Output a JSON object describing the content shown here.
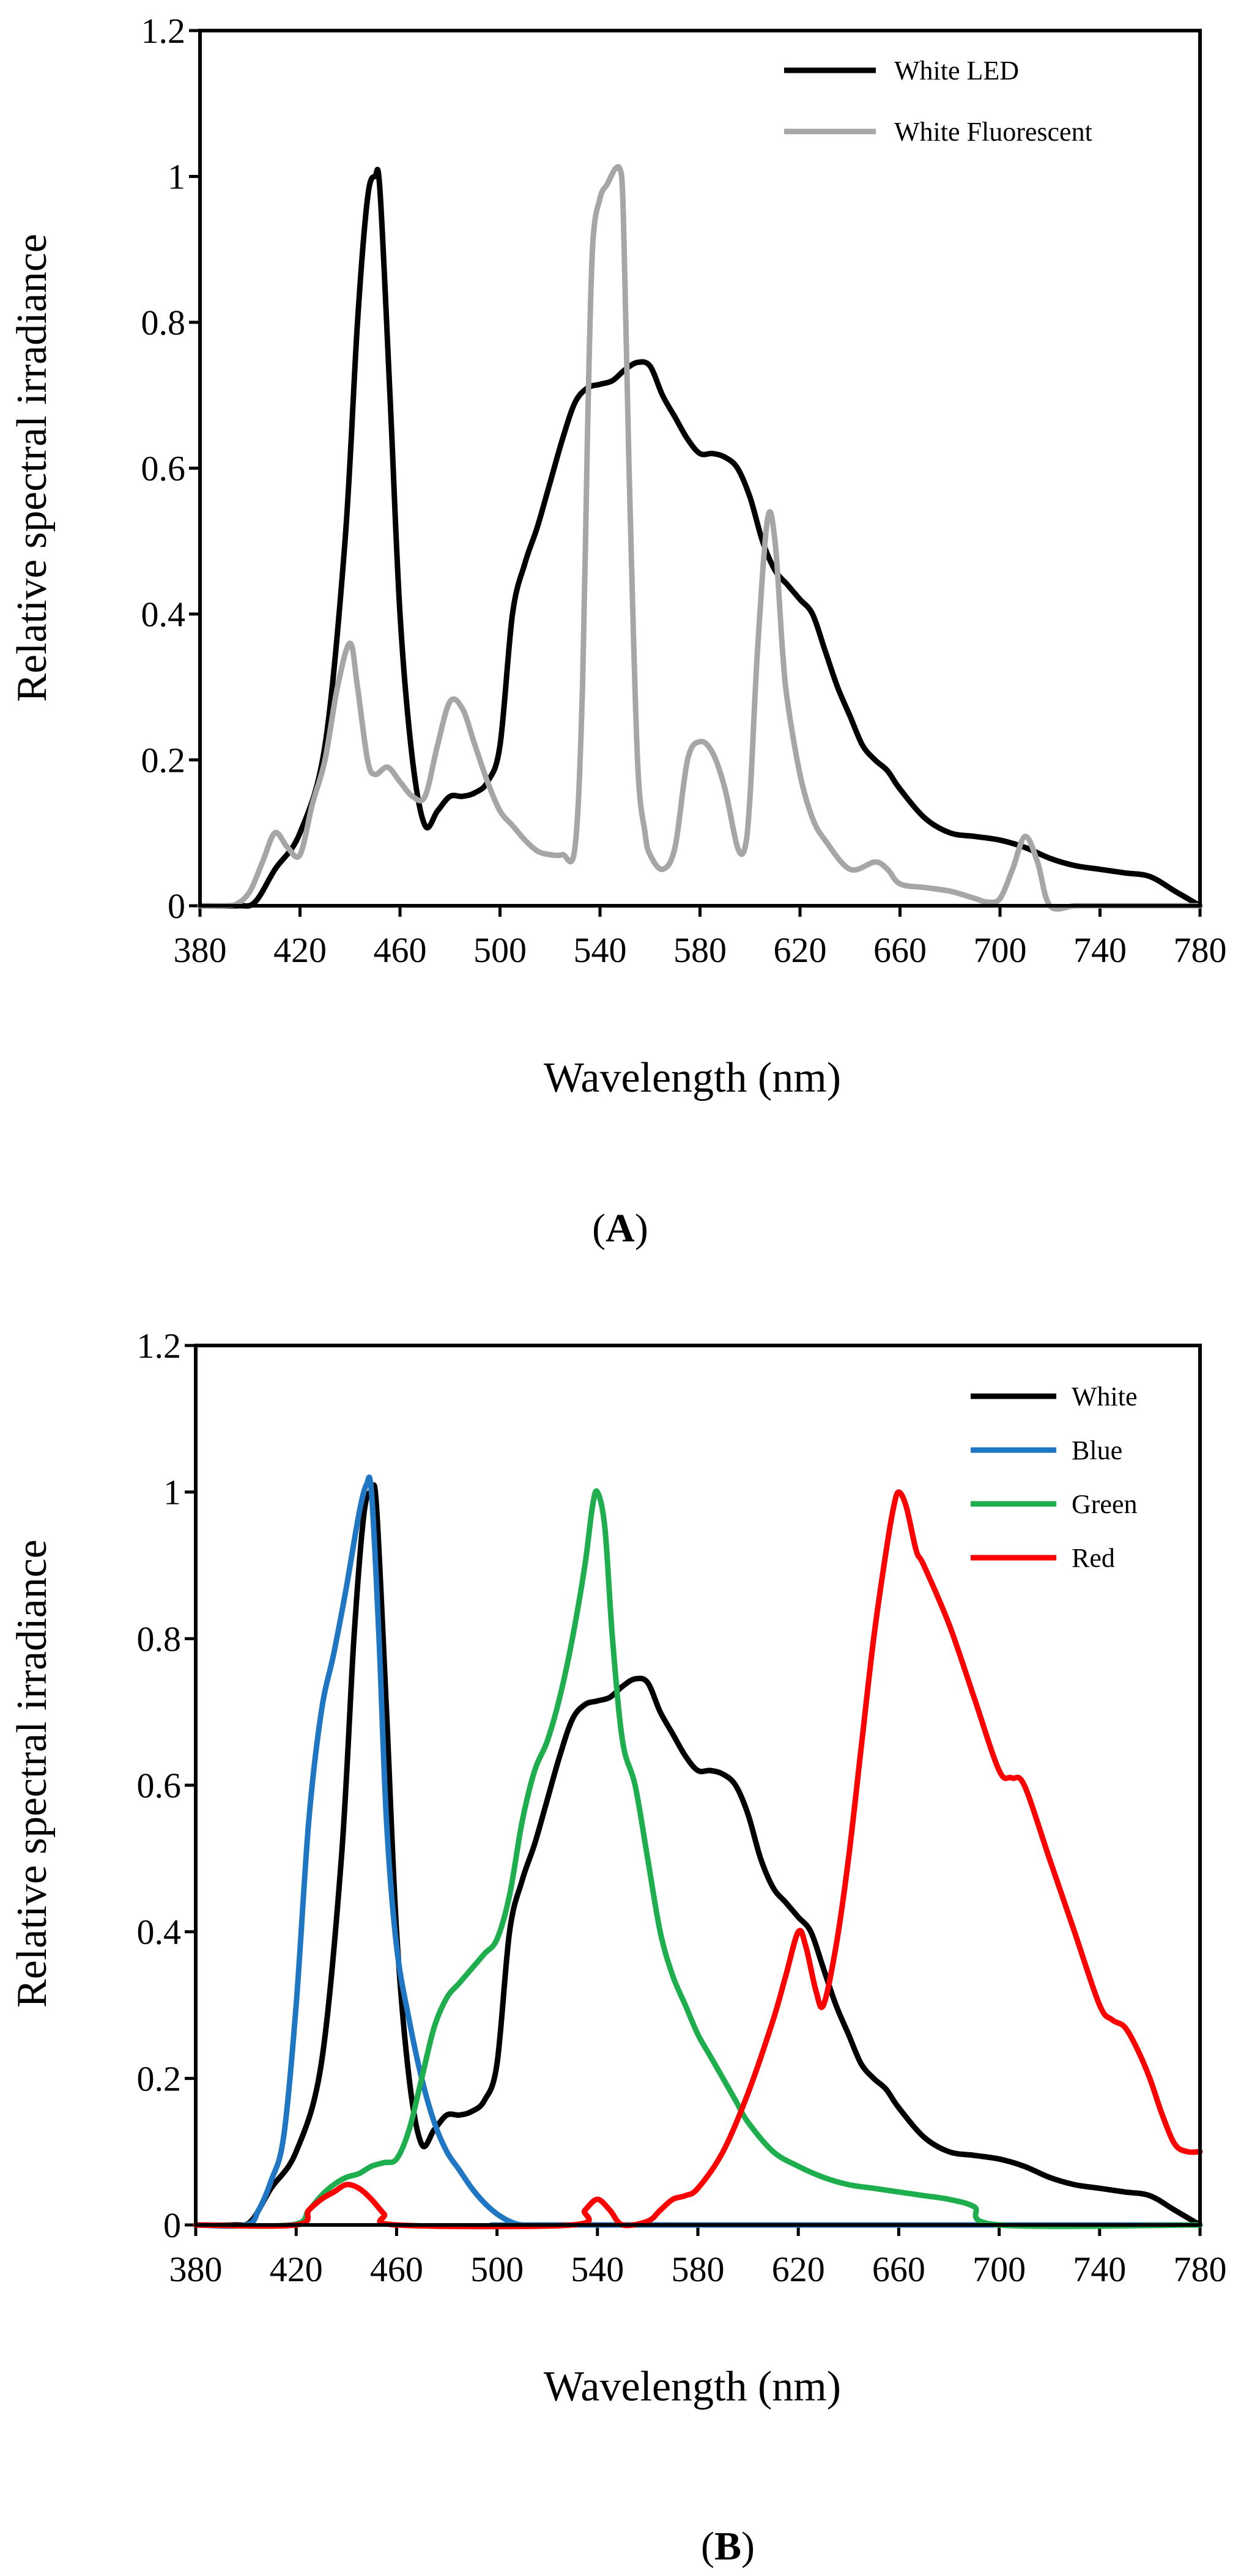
{
  "chart_data": [
    {
      "type": "line",
      "panel": "A",
      "title": "",
      "xlabel": "Wavelength (nm)",
      "ylabel": "Relative spectral irradiance",
      "xlim": [
        380,
        780
      ],
      "ylim": [
        0,
        1.2
      ],
      "xticks": [
        380,
        420,
        460,
        500,
        540,
        580,
        620,
        660,
        700,
        740,
        780
      ],
      "xtick_labels": [
        "380",
        "420",
        "460",
        "500",
        "540",
        "580",
        "620",
        "660",
        "700",
        "740",
        "780"
      ],
      "yticks": [
        0,
        0.2,
        0.4,
        0.6,
        0.8,
        1,
        1.2
      ],
      "ytick_labels": [
        "0",
        "0.2",
        "0.4",
        "0.6",
        "0.8",
        "1",
        "1.2"
      ],
      "grid": false,
      "legend_position": "top-right",
      "panel_label": {
        "open": "(",
        "letter": "A",
        "close": ")"
      },
      "series": [
        {
          "name": "White LED",
          "color": "#000000",
          "x": [
            380,
            395,
            402,
            410,
            420,
            430,
            438,
            443,
            447,
            450,
            452,
            456,
            460,
            465,
            470,
            475,
            480,
            485,
            490,
            495,
            500,
            505,
            510,
            515,
            520,
            525,
            530,
            535,
            540,
            545,
            550,
            555,
            560,
            565,
            570,
            575,
            580,
            585,
            590,
            595,
            600,
            605,
            610,
            615,
            620,
            625,
            630,
            635,
            640,
            645,
            650,
            655,
            660,
            670,
            680,
            690,
            700,
            710,
            720,
            730,
            740,
            750,
            760,
            770,
            780
          ],
          "values": [
            0,
            0,
            0.005,
            0.05,
            0.1,
            0.22,
            0.5,
            0.8,
            0.97,
            1.0,
            0.98,
            0.7,
            0.4,
            0.2,
            0.11,
            0.13,
            0.15,
            0.15,
            0.155,
            0.17,
            0.22,
            0.4,
            0.47,
            0.52,
            0.58,
            0.64,
            0.69,
            0.71,
            0.715,
            0.72,
            0.735,
            0.745,
            0.74,
            0.7,
            0.67,
            0.64,
            0.62,
            0.62,
            0.615,
            0.6,
            0.56,
            0.5,
            0.46,
            0.44,
            0.42,
            0.4,
            0.35,
            0.3,
            0.26,
            0.22,
            0.2,
            0.185,
            0.16,
            0.12,
            0.1,
            0.095,
            0.09,
            0.08,
            0.065,
            0.055,
            0.05,
            0.045,
            0.04,
            0.02,
            0
          ]
        },
        {
          "name": "White Fluorescent",
          "color": "#a6a6a6",
          "x": [
            380,
            390,
            395,
            400,
            405,
            410,
            415,
            420,
            425,
            430,
            435,
            440,
            443,
            447,
            450,
            455,
            460,
            465,
            470,
            475,
            480,
            485,
            490,
            495,
            500,
            505,
            510,
            515,
            520,
            525,
            530,
            533,
            535,
            537,
            540,
            543,
            546,
            548,
            549,
            550,
            552,
            555,
            558,
            560,
            565,
            570,
            575,
            580,
            585,
            590,
            595,
            598,
            600,
            603,
            607,
            610,
            613,
            615,
            620,
            625,
            630,
            640,
            650,
            655,
            660,
            670,
            680,
            690,
            695,
            700,
            705,
            710,
            715,
            720,
            730,
            740,
            780
          ],
          "values": [
            0,
            0,
            0.003,
            0.02,
            0.06,
            0.1,
            0.08,
            0.07,
            0.14,
            0.2,
            0.3,
            0.36,
            0.3,
            0.2,
            0.18,
            0.19,
            0.17,
            0.15,
            0.15,
            0.22,
            0.28,
            0.27,
            0.22,
            0.17,
            0.13,
            0.11,
            0.09,
            0.075,
            0.07,
            0.07,
            0.08,
            0.3,
            0.65,
            0.9,
            0.97,
            0.99,
            1.01,
            1.01,
            0.98,
            0.85,
            0.55,
            0.2,
            0.1,
            0.07,
            0.05,
            0.08,
            0.2,
            0.225,
            0.21,
            0.16,
            0.08,
            0.08,
            0.15,
            0.35,
            0.53,
            0.5,
            0.35,
            0.28,
            0.18,
            0.12,
            0.09,
            0.05,
            0.06,
            0.05,
            0.03,
            0.025,
            0.02,
            0.01,
            0.005,
            0.01,
            0.05,
            0.095,
            0.06,
            0.0,
            0,
            0,
            0
          ]
        }
      ]
    },
    {
      "type": "line",
      "panel": "B",
      "title": "",
      "xlabel": "Wavelength (nm)",
      "ylabel": "Relative spectral irradiance",
      "xlim": [
        380,
        780
      ],
      "ylim": [
        0,
        1.2
      ],
      "xticks": [
        380,
        420,
        460,
        500,
        540,
        580,
        620,
        660,
        700,
        740,
        780
      ],
      "xtick_labels": [
        "380",
        "420",
        "460",
        "500",
        "540",
        "580",
        "620",
        "660",
        "700",
        "740",
        "780"
      ],
      "yticks": [
        0,
        0.2,
        0.4,
        0.6,
        0.8,
        1,
        1.2
      ],
      "ytick_labels": [
        "0",
        "0.2",
        "0.4",
        "0.6",
        "0.8",
        "1",
        "1.2"
      ],
      "grid": false,
      "legend_position": "top-right",
      "panel_label": {
        "open": "(",
        "letter": "B",
        "close": ")"
      },
      "series": [
        {
          "name": "White",
          "color": "#000000",
          "x": [
            380,
            395,
            402,
            410,
            420,
            430,
            438,
            443,
            447,
            450,
            452,
            456,
            460,
            465,
            470,
            475,
            480,
            485,
            490,
            495,
            500,
            505,
            510,
            515,
            520,
            525,
            530,
            535,
            540,
            545,
            550,
            555,
            560,
            565,
            570,
            575,
            580,
            585,
            590,
            595,
            600,
            605,
            610,
            615,
            620,
            625,
            630,
            635,
            640,
            645,
            650,
            655,
            660,
            670,
            680,
            690,
            700,
            710,
            720,
            730,
            740,
            750,
            760,
            770,
            780
          ],
          "values": [
            0,
            0,
            0.005,
            0.05,
            0.1,
            0.22,
            0.5,
            0.8,
            0.97,
            1.0,
            0.98,
            0.7,
            0.4,
            0.2,
            0.11,
            0.13,
            0.15,
            0.15,
            0.155,
            0.17,
            0.22,
            0.4,
            0.47,
            0.52,
            0.58,
            0.64,
            0.69,
            0.71,
            0.715,
            0.72,
            0.735,
            0.745,
            0.74,
            0.7,
            0.67,
            0.64,
            0.62,
            0.62,
            0.615,
            0.6,
            0.56,
            0.5,
            0.46,
            0.44,
            0.42,
            0.4,
            0.35,
            0.3,
            0.26,
            0.22,
            0.2,
            0.185,
            0.16,
            0.12,
            0.1,
            0.095,
            0.09,
            0.08,
            0.065,
            0.055,
            0.05,
            0.045,
            0.04,
            0.02,
            0
          ]
        },
        {
          "name": "Blue",
          "color": "#1f77c4",
          "x": [
            380,
            400,
            405,
            410,
            415,
            420,
            425,
            430,
            435,
            440,
            445,
            448,
            450,
            453,
            456,
            460,
            465,
            470,
            475,
            480,
            485,
            490,
            495,
            500,
            505,
            510,
            520,
            780
          ],
          "values": [
            0,
            0,
            0.02,
            0.06,
            0.12,
            0.3,
            0.55,
            0.7,
            0.78,
            0.87,
            0.97,
            1.01,
            1.0,
            0.8,
            0.55,
            0.38,
            0.28,
            0.2,
            0.14,
            0.1,
            0.075,
            0.05,
            0.03,
            0.015,
            0.005,
            0,
            0,
            0
          ]
        },
        {
          "name": "Green",
          "color": "#1fae4e",
          "x": [
            380,
            418,
            425,
            430,
            435,
            440,
            445,
            450,
            455,
            460,
            465,
            470,
            475,
            480,
            485,
            490,
            495,
            500,
            505,
            510,
            515,
            520,
            525,
            530,
            535,
            538,
            540,
            543,
            546,
            550,
            555,
            560,
            565,
            570,
            575,
            580,
            585,
            590,
            595,
            600,
            610,
            620,
            630,
            640,
            650,
            660,
            670,
            680,
            690,
            700,
            780
          ],
          "values": [
            0,
            0,
            0.02,
            0.04,
            0.055,
            0.065,
            0.07,
            0.08,
            0.085,
            0.09,
            0.13,
            0.2,
            0.27,
            0.31,
            0.33,
            0.35,
            0.37,
            0.39,
            0.45,
            0.55,
            0.62,
            0.66,
            0.72,
            0.8,
            0.9,
            0.98,
            1.0,
            0.95,
            0.8,
            0.66,
            0.6,
            0.5,
            0.4,
            0.34,
            0.3,
            0.26,
            0.23,
            0.2,
            0.17,
            0.14,
            0.1,
            0.08,
            0.065,
            0.055,
            0.05,
            0.045,
            0.04,
            0.035,
            0.025,
            0.0,
            0
          ]
        },
        {
          "name": "Red",
          "color": "#ff0000",
          "x": [
            380,
            420,
            425,
            430,
            435,
            440,
            445,
            450,
            455,
            460,
            530,
            535,
            540,
            545,
            550,
            560,
            565,
            570,
            575,
            580,
            590,
            600,
            610,
            615,
            620,
            623,
            627,
            630,
            635,
            640,
            645,
            650,
            655,
            658,
            660,
            663,
            667,
            670,
            680,
            690,
            700,
            705,
            710,
            720,
            730,
            740,
            745,
            750,
            755,
            760,
            765,
            770,
            775,
            780
          ],
          "values": [
            0,
            0,
            0.02,
            0.035,
            0.045,
            0.055,
            0.05,
            0.035,
            0.015,
            0,
            0,
            0.02,
            0.035,
            0.02,
            0,
            0.005,
            0.02,
            0.035,
            0.04,
            0.05,
            0.1,
            0.18,
            0.28,
            0.34,
            0.4,
            0.38,
            0.32,
            0.3,
            0.38,
            0.5,
            0.65,
            0.8,
            0.92,
            0.98,
            1.0,
            0.98,
            0.92,
            0.9,
            0.82,
            0.72,
            0.62,
            0.61,
            0.6,
            0.5,
            0.4,
            0.3,
            0.28,
            0.27,
            0.24,
            0.2,
            0.15,
            0.11,
            0.1,
            0.1
          ]
        }
      ]
    }
  ]
}
